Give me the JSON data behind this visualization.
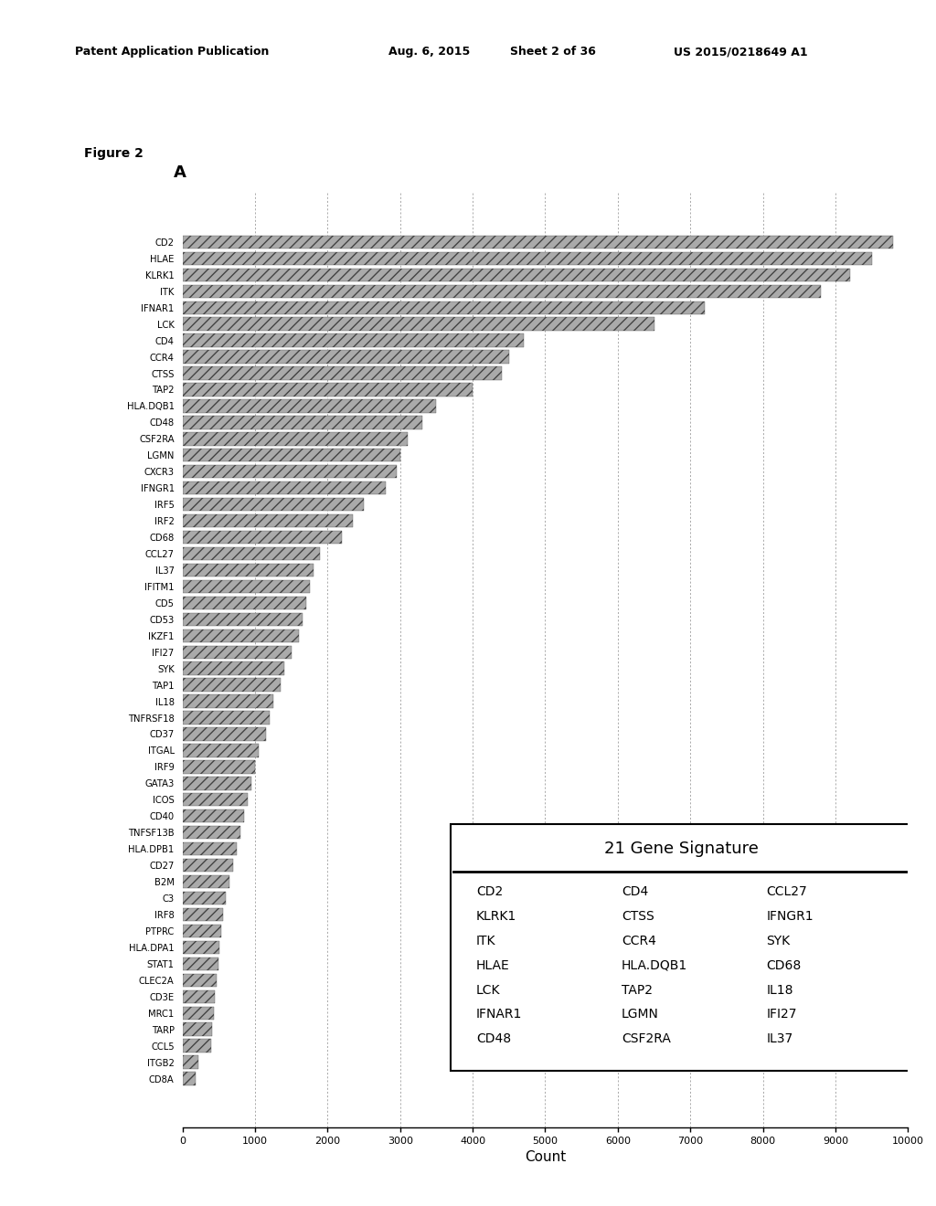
{
  "genes": [
    "CD2",
    "HLAE",
    "KLRK1",
    "ITK",
    "IFNAR1",
    "LCK",
    "CD4",
    "CCR4",
    "CTSS",
    "TAP2",
    "HLA.DQB1",
    "CD48",
    "CSF2RA",
    "LGMN",
    "CXCR3",
    "IFNGR1",
    "IRF5",
    "IRF2",
    "CD68",
    "CCL27",
    "IL37",
    "IFITM1",
    "CD5",
    "CD53",
    "IKZF1",
    "IFI27",
    "SYK",
    "TAP1",
    "IL18",
    "TNFRSF18",
    "CD37",
    "ITGAL",
    "IRF9",
    "GATA3",
    "ICOS",
    "CD40",
    "TNFSF13B",
    "HLA.DPB1",
    "CD27",
    "B2M",
    "C3",
    "IRF8",
    "PTPRC",
    "HLA.DPA1",
    "STAT1",
    "CLEC2A",
    "CD3E",
    "MRC1",
    "TARP",
    "CCL5",
    "ITGB2",
    "CD8A"
  ],
  "values": [
    9800,
    9500,
    9200,
    8800,
    7200,
    6500,
    4700,
    4500,
    4400,
    4000,
    3500,
    3300,
    3100,
    3000,
    2950,
    2800,
    2500,
    2350,
    2200,
    1900,
    1800,
    1750,
    1700,
    1650,
    1600,
    1500,
    1400,
    1350,
    1250,
    1200,
    1150,
    1050,
    1000,
    950,
    900,
    850,
    800,
    750,
    700,
    650,
    600,
    560,
    530,
    510,
    490,
    470,
    450,
    430,
    410,
    390,
    220,
    180
  ],
  "xlim": [
    0,
    10000
  ],
  "xticks": [
    0,
    1000,
    2000,
    3000,
    4000,
    5000,
    6000,
    7000,
    8000,
    9000,
    10000
  ],
  "xlabel": "Count",
  "patent_header": "Patent Application Publication        Aug. 6, 2015   Sheet 2 of 36        US 2015/0218649 A1",
  "figure_title": "Figure 2",
  "figure_label": "A",
  "signature_title": "21 Gene Signature",
  "signature_genes_col1": [
    "CD2",
    "KLRK1",
    "ITK",
    "HLAE",
    "LCK",
    "IFNAR1",
    "CD48"
  ],
  "signature_genes_col2": [
    "CD4",
    "CTSS",
    "CCR4",
    "HLA.DQB1",
    "TAP2",
    "LGMN",
    "CSF2RA"
  ],
  "signature_genes_col3": [
    "CCL27",
    "IFNGR1",
    "SYK",
    "CD68",
    "IL18",
    "IFI27",
    "IL37"
  ],
  "background_color": "#ffffff"
}
